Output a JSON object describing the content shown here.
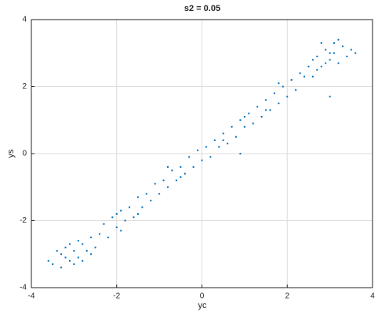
{
  "chart_data": {
    "type": "scatter",
    "title": "s2 = 0.05",
    "xlabel": "yc",
    "ylabel": "ys",
    "x": [
      -3.5,
      -3.3,
      -3.2,
      -3.1,
      -3.0,
      -2.9,
      -2.8,
      -3.0,
      -3.2,
      -2.7,
      -2.6,
      -3.4,
      -2.9,
      -3.1,
      -2.8,
      -2.5,
      -3.3,
      -2.6,
      -3.6,
      -2.4,
      -2.3,
      -2.2,
      -2.1,
      -2.0,
      -1.9,
      -1.8,
      -1.7,
      -1.6,
      -1.5,
      -1.4,
      -1.3,
      -1.2,
      -1.1,
      -1.0,
      -0.9,
      -0.8,
      -0.7,
      -0.6,
      -0.5,
      -0.4,
      -0.3,
      -0.2,
      -0.1,
      0.0,
      0.1,
      0.2,
      0.3,
      0.4,
      0.5,
      0.6,
      0.7,
      0.8,
      0.9,
      1.0,
      1.1,
      1.2,
      1.3,
      1.4,
      1.5,
      1.6,
      1.7,
      1.8,
      1.9,
      2.0,
      2.1,
      2.2,
      2.3,
      -1.5,
      -0.5,
      0.5,
      1.0,
      -2.0,
      1.5,
      0.9,
      -0.8,
      1.8,
      -1.9,
      2.5,
      2.6,
      2.7,
      2.8,
      2.9,
      3.0,
      3.1,
      3.2,
      3.3,
      2.8,
      3.0,
      2.7,
      2.9,
      3.1,
      3.4,
      3.5,
      2.6,
      3.2,
      3.6,
      2.4,
      3.0
    ],
    "values": [
      -3.3,
      -3.0,
      -2.8,
      -3.2,
      -2.9,
      -3.1,
      -2.7,
      -3.3,
      -3.1,
      -2.9,
      -2.5,
      -2.9,
      -2.6,
      -2.7,
      -3.2,
      -2.8,
      -3.4,
      -3.0,
      -3.2,
      -2.4,
      -2.1,
      -2.5,
      -1.9,
      -2.2,
      -1.7,
      -2.0,
      -1.6,
      -1.9,
      -1.3,
      -1.6,
      -1.2,
      -1.4,
      -0.9,
      -1.2,
      -0.8,
      -1.0,
      -0.5,
      -0.8,
      -0.4,
      -0.6,
      -0.1,
      -0.4,
      0.1,
      -0.2,
      0.2,
      -0.1,
      0.4,
      0.2,
      0.6,
      0.3,
      0.8,
      0.5,
      1.0,
      0.8,
      1.2,
      0.9,
      1.4,
      1.1,
      1.6,
      1.3,
      1.8,
      1.5,
      2.0,
      1.7,
      2.2,
      1.9,
      2.4,
      -1.8,
      -0.7,
      0.4,
      1.1,
      -1.8,
      1.3,
      0.0,
      -0.4,
      2.1,
      -2.3,
      2.6,
      2.3,
      2.9,
      2.6,
      3.1,
      2.8,
      3.0,
      2.7,
      3.2,
      3.3,
      3.0,
      2.5,
      2.7,
      3.3,
      2.9,
      3.1,
      2.8,
      3.4,
      3.0,
      2.3,
      1.7
    ],
    "color": "#0072bd",
    "xlim": [
      -4,
      4
    ],
    "ylim": [
      -4,
      4
    ],
    "xticks": [
      -4,
      -2,
      0,
      2,
      4
    ],
    "yticks": [
      -4,
      -2,
      0,
      2,
      4
    ],
    "grid": true
  }
}
